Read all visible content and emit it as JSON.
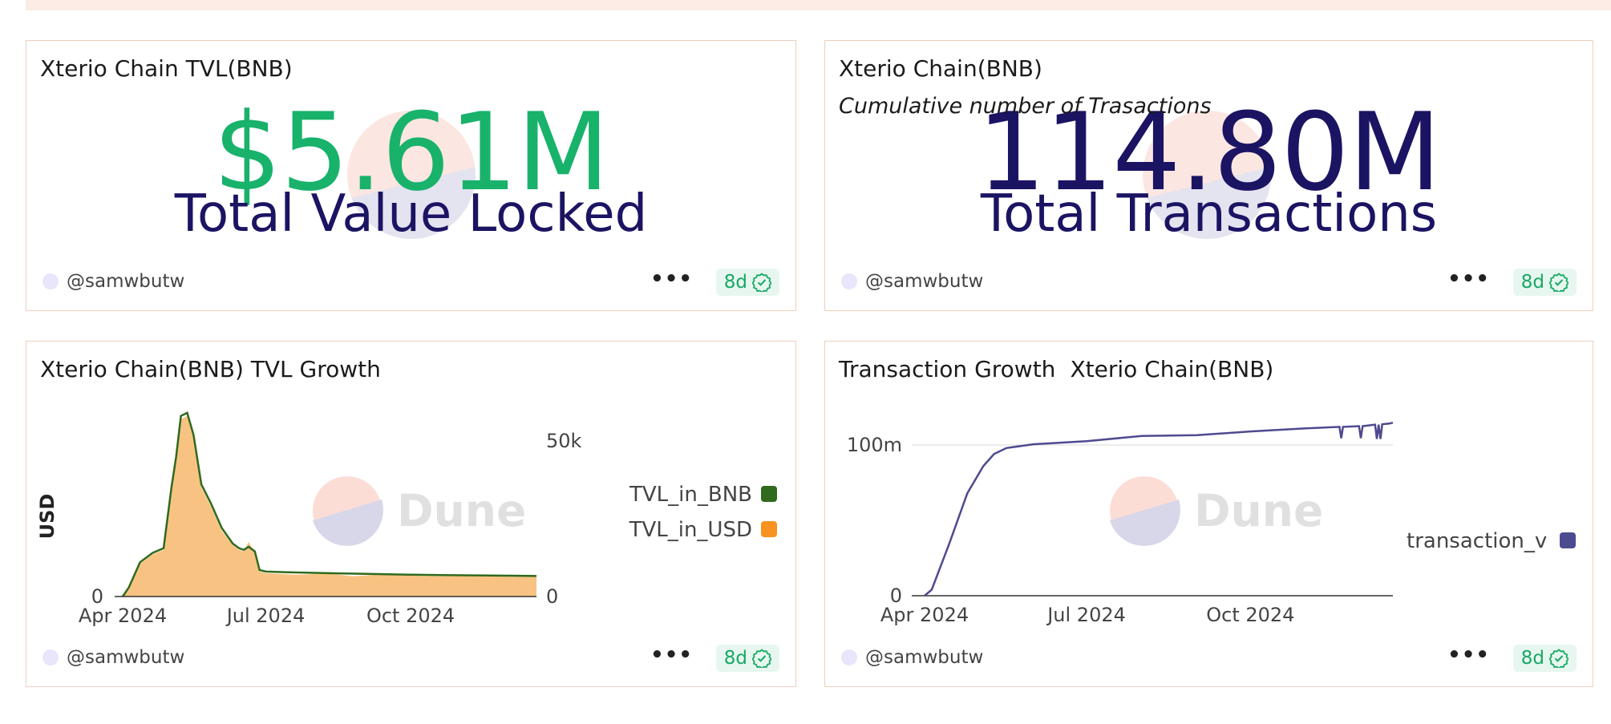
{
  "cards": [
    {
      "title": "Xterio Chain TVL(BNB)",
      "value": "$5.61M",
      "label": "Total Value Locked",
      "value_color": "#18b26b",
      "author": "@samwbutw",
      "age": "8d"
    },
    {
      "title": "Xterio Chain(BNB)",
      "subtitle": "Cumulative number of Trasactions",
      "value": "114.80M",
      "label": "Total Transactions",
      "value_color": "#1b1463",
      "author": "@samwbutw",
      "age": "8d"
    },
    {
      "title": "Xterio Chain(BNB) TVL Growth",
      "author": "@samwbutw",
      "age": "8d"
    },
    {
      "title": "Transaction Growth",
      "subtitle": "Xterio Chain(BNB)",
      "author": "@samwbutw",
      "age": "8d"
    }
  ],
  "watermark": "Dune",
  "more_label": "•••",
  "chart_data": [
    {
      "type": "area",
      "ylabel": "USD",
      "x_tick_labels": [
        "Apr 2024",
        "Jul 2024",
        "Oct 2024"
      ],
      "x_ticks": [
        "2024-04-01",
        "2024-07-01",
        "2024-10-01"
      ],
      "xlim": [
        "2024-04-01",
        "2024-12-20"
      ],
      "left_axis_ticks": [
        "0"
      ],
      "right_axis_ticks": [
        "50k",
        "0"
      ],
      "y_right_values": [
        50000,
        0
      ],
      "legend_placement": "right",
      "series": [
        {
          "name": "TVL_in_BNB",
          "color": "#2f6a1e",
          "mark": "line",
          "x": [
            "2024-04-01",
            "2024-04-05",
            "2024-04-12",
            "2024-04-20",
            "2024-04-27",
            "2024-05-02",
            "2024-05-05",
            "2024-05-08",
            "2024-05-12",
            "2024-05-16",
            "2024-05-21",
            "2024-05-27",
            "2024-06-03",
            "2024-06-10",
            "2024-06-14",
            "2024-06-17",
            "2024-06-20",
            "2024-06-24",
            "2024-06-27",
            "2024-07-01",
            "2024-07-15",
            "2024-08-01",
            "2024-08-20",
            "2024-09-10",
            "2024-10-01",
            "2024-10-20",
            "2024-11-10",
            "2024-12-01",
            "2024-12-20"
          ],
          "values": [
            0,
            3000,
            11000,
            14000,
            15500,
            35000,
            45000,
            58000,
            59000,
            52000,
            36000,
            30000,
            22000,
            17000,
            15500,
            15000,
            16000,
            14500,
            8500,
            8000,
            7800,
            7600,
            7400,
            7200,
            7000,
            6900,
            6800,
            6700,
            6600
          ]
        },
        {
          "name": "TVL_in_USD",
          "color": "#f7931e",
          "mark": "area",
          "fill": "#f8c382",
          "x": [
            "2024-04-01",
            "2024-04-05",
            "2024-04-12",
            "2024-04-20",
            "2024-04-27",
            "2024-05-02",
            "2024-05-05",
            "2024-05-08",
            "2024-05-12",
            "2024-05-16",
            "2024-05-21",
            "2024-05-27",
            "2024-06-03",
            "2024-06-10",
            "2024-06-14",
            "2024-06-17",
            "2024-06-20",
            "2024-06-24",
            "2024-06-27",
            "2024-07-01",
            "2024-07-20",
            "2024-08-10",
            "2024-08-25",
            "2024-09-10",
            "2024-10-01",
            "2024-10-20",
            "2024-11-10",
            "2024-12-01",
            "2024-12-20"
          ],
          "values": [
            0,
            2800,
            10500,
            13500,
            15000,
            34000,
            44000,
            57000,
            58000,
            51000,
            35000,
            29000,
            21000,
            16500,
            15000,
            14500,
            17500,
            14000,
            8000,
            7500,
            7000,
            7400,
            6500,
            7000,
            6700,
            6500,
            6600,
            6400,
            6300
          ]
        }
      ]
    },
    {
      "type": "line",
      "x_tick_labels": [
        "Apr 2024",
        "Jul 2024",
        "Oct 2024"
      ],
      "x_ticks": [
        "2024-04-01",
        "2024-07-01",
        "2024-10-01"
      ],
      "xlim": [
        "2024-04-01",
        "2024-12-20"
      ],
      "y_tick_labels": [
        "100m",
        "0"
      ],
      "y_ticks": [
        100000000,
        0
      ],
      "ylim": [
        0,
        125000000
      ],
      "grid": true,
      "legend_placement": "right",
      "series": [
        {
          "name": "transaction_v",
          "color": "#4e4a8f",
          "x": [
            "2024-04-01",
            "2024-04-05",
            "2024-04-15",
            "2024-04-25",
            "2024-05-04",
            "2024-05-10",
            "2024-05-17",
            "2024-06-01",
            "2024-07-01",
            "2024-08-01",
            "2024-09-01",
            "2024-10-01",
            "2024-11-01",
            "2024-11-20",
            "2024-11-21",
            "2024-11-22",
            "2024-12-01",
            "2024-12-02",
            "2024-12-03",
            "2024-12-10",
            "2024-12-11",
            "2024-12-12",
            "2024-12-13",
            "2024-12-14",
            "2024-12-18",
            "2024-12-20"
          ],
          "values": [
            0,
            4000000,
            35000000,
            68000000,
            86000000,
            94000000,
            98000000,
            100500000,
            102500000,
            106000000,
            106500000,
            109000000,
            111000000,
            112000000,
            104500000,
            112000000,
            112500000,
            104500000,
            112500000,
            113500000,
            104000000,
            113500000,
            104000000,
            113800000,
            114200000,
            114800000
          ]
        }
      ]
    }
  ]
}
